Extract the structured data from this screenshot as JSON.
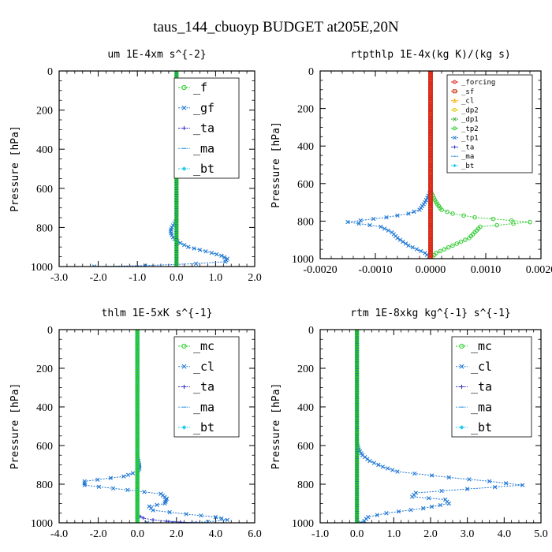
{
  "figure": {
    "title": "taus_144_cbuoyp  BUDGET at205E,20N"
  },
  "chart_data": [
    {
      "type": "line",
      "title": "um  1E-4xm s^{-2}",
      "ylabel": "Pressure [hPa]",
      "xlim": [
        -3.0,
        2.0
      ],
      "ylim": [
        1000,
        0
      ],
      "xticks": [
        "-3.0",
        "-2.0",
        "-1.0",
        "0.0",
        "1.0",
        "2.0"
      ],
      "xtick_values": [
        -3,
        -2,
        -1,
        0,
        1,
        2
      ],
      "yticks": [
        "0",
        "200",
        "400",
        "600",
        "800",
        "1000"
      ],
      "ytick_values": [
        0,
        200,
        400,
        600,
        800,
        1000
      ],
      "legend_style": "big",
      "legend_position": "top-right",
      "series": [
        {
          "name": "_f",
          "color": "#22cc22",
          "marker": "circle",
          "x": [
            0,
            0
          ],
          "y": [
            0,
            1000
          ]
        },
        {
          "name": "_gf",
          "color": "#1f77d4",
          "marker": "x",
          "x": [
            0,
            0,
            0,
            0,
            0,
            -0.05,
            -0.12,
            -0.15,
            -0.12,
            -0.05,
            0.1,
            0.3,
            0.6,
            0.9,
            1.15,
            1.3,
            1.25,
            0.5,
            -0.8,
            -2.1
          ],
          "y": [
            0,
            600,
            700,
            740,
            760,
            780,
            800,
            820,
            840,
            860,
            880,
            900,
            915,
            930,
            945,
            960,
            975,
            985,
            995,
            1000
          ]
        },
        {
          "name": "_ta",
          "color": "#3333cc",
          "marker": "plus",
          "x": [
            0,
            0
          ],
          "y": [
            0,
            1000
          ]
        },
        {
          "name": "_ma",
          "color": "#4499dd",
          "marker": "dash",
          "x": [
            0,
            0
          ],
          "y": [
            0,
            1000
          ]
        },
        {
          "name": "_bt",
          "color": "#22ccee",
          "marker": "diamond",
          "x": [
            0,
            0
          ],
          "y": [
            0,
            1000
          ]
        }
      ]
    },
    {
      "type": "line",
      "title": "rtpthlp  1E-4x(kg K)/(kg s)",
      "ylabel": "Pressure [hPa]",
      "xlim": [
        -0.002,
        0.002
      ],
      "ylim": [
        1000,
        0
      ],
      "xticks": [
        "-0.0020",
        "-0.0010",
        "0.0000",
        "0.0010",
        "0.0020"
      ],
      "xtick_values": [
        -0.002,
        -0.001,
        0,
        0.001,
        0.002
      ],
      "yticks": [
        "0",
        "200",
        "400",
        "600",
        "800",
        "1000"
      ],
      "ytick_values": [
        0,
        200,
        400,
        600,
        800,
        1000
      ],
      "legend_style": "small",
      "legend_position": "top-right",
      "series": [
        {
          "name": "_forcing",
          "color": "#dd2222",
          "marker": "circle",
          "x": [
            0,
            0
          ],
          "y": [
            0,
            1000
          ]
        },
        {
          "name": "_sf",
          "color": "#cc3311",
          "marker": "square",
          "x": [
            0,
            0
          ],
          "y": [
            0,
            1000
          ]
        },
        {
          "name": "_cl",
          "color": "#ffaa00",
          "marker": "triangle",
          "x": [
            0,
            0
          ],
          "y": [
            0,
            1000
          ]
        },
        {
          "name": "_dp2",
          "color": "#ddcc00",
          "marker": "circle",
          "x": [
            0,
            0
          ],
          "y": [
            0,
            1000
          ]
        },
        {
          "name": "_dp1",
          "color": "#33aa33",
          "marker": "x",
          "x": [
            0,
            0
          ],
          "y": [
            0,
            1000
          ]
        },
        {
          "name": "_tp2",
          "color": "#33cc33",
          "marker": "circle",
          "x": [
            0,
            0,
            0.0001,
            0.0002,
            0.0004,
            0.0008,
            0.0018,
            0.0009,
            0.0008,
            0.0007,
            0.0004,
            0.0001,
            0
          ],
          "y": [
            0,
            640,
            700,
            740,
            760,
            780,
            805,
            830,
            860,
            890,
            930,
            970,
            1000
          ]
        },
        {
          "name": "_tp1",
          "color": "#1f77d4",
          "marker": "x",
          "x": [
            0,
            0,
            -0.0001,
            -0.0002,
            -0.0004,
            -0.0008,
            -0.0015,
            -0.0009,
            -0.0007,
            -0.0006,
            -0.0004,
            -0.0001,
            0
          ],
          "y": [
            0,
            640,
            700,
            740,
            760,
            780,
            805,
            830,
            860,
            890,
            930,
            970,
            1000
          ]
        },
        {
          "name": "_ta",
          "color": "#3333cc",
          "marker": "plus",
          "x": [
            0,
            0
          ],
          "y": [
            0,
            1000
          ]
        },
        {
          "name": "_ma",
          "color": "#4499dd",
          "marker": "dash",
          "x": [
            0,
            0
          ],
          "y": [
            0,
            1000
          ]
        },
        {
          "name": "_bt",
          "color": "#22ccee",
          "marker": "diamond",
          "x": [
            0,
            0
          ],
          "y": [
            0,
            1000
          ]
        }
      ]
    },
    {
      "type": "line",
      "title": "thlm  1E-5xK s^{-1}",
      "ylabel": "Pressure [hPa]",
      "xlim": [
        -4.0,
        6.0
      ],
      "ylim": [
        1000,
        0
      ],
      "xticks": [
        "-4.0",
        "-2.0",
        "0.0",
        "2.0",
        "4.0",
        "6.0"
      ],
      "xtick_values": [
        -4,
        -2,
        0,
        2,
        4,
        6
      ],
      "yticks": [
        "0",
        "200",
        "400",
        "600",
        "800",
        "1000"
      ],
      "ytick_values": [
        0,
        200,
        400,
        600,
        800,
        1000
      ],
      "legend_style": "big",
      "legend_position": "top-right",
      "series": [
        {
          "name": "_mc",
          "color": "#22cc22",
          "marker": "circle",
          "x": [
            0,
            0
          ],
          "y": [
            0,
            1000
          ]
        },
        {
          "name": "_cl",
          "color": "#1f77d4",
          "marker": "x",
          "x": [
            0,
            0,
            0.1,
            0.1,
            0,
            -0.7,
            -2.7,
            -2.7,
            -0.5,
            1.2,
            1.5,
            1.4,
            0.6,
            0.8,
            2.5,
            4.0,
            4.6,
            3.6,
            1.8,
            0.5
          ],
          "y": [
            0,
            660,
            700,
            720,
            735,
            760,
            785,
            805,
            830,
            850,
            875,
            900,
            915,
            935,
            955,
            970,
            985,
            995,
            1000,
            1000
          ]
        },
        {
          "name": "_ta",
          "color": "#3333cc",
          "marker": "plus",
          "x": [
            0,
            0,
            0.3,
            0.8,
            1.5,
            2.2,
            3.0
          ],
          "y": [
            0,
            960,
            975,
            985,
            992,
            996,
            1000
          ]
        },
        {
          "name": "_ma",
          "color": "#4499dd",
          "marker": "dash",
          "x": [
            0,
            0
          ],
          "y": [
            0,
            1000
          ]
        },
        {
          "name": "_bt",
          "color": "#22ccee",
          "marker": "diamond",
          "x": [
            0,
            0
          ],
          "y": [
            0,
            1000
          ]
        }
      ]
    },
    {
      "type": "line",
      "title": "rtm  1E-8xkg kg^{-1} s^{-1}",
      "ylabel": "Pressure [hPa]",
      "xlim": [
        -1.0,
        5.0
      ],
      "ylim": [
        1000,
        0
      ],
      "xticks": [
        "-1.0",
        "0.0",
        "1.0",
        "2.0",
        "3.0",
        "4.0",
        "5.0"
      ],
      "xtick_values": [
        -1,
        0,
        1,
        2,
        3,
        4,
        5
      ],
      "yticks": [
        "0",
        "200",
        "400",
        "600",
        "800",
        "1000"
      ],
      "ytick_values": [
        0,
        200,
        400,
        600,
        800,
        1000
      ],
      "legend_style": "big",
      "legend_position": "top-right",
      "series": [
        {
          "name": "_mc",
          "color": "#22cc22",
          "marker": "circle",
          "x": [
            0,
            0
          ],
          "y": [
            0,
            1000
          ]
        },
        {
          "name": "_cl",
          "color": "#1f77d4",
          "marker": "x",
          "x": [
            0,
            0,
            0.05,
            0.15,
            0.35,
            0.7,
            1.1,
            2.5,
            3.6,
            4.5,
            3.0,
            1.6,
            1.5,
            2.4,
            2.5,
            1.8,
            0.8,
            0.3,
            0.2,
            0.1
          ],
          "y": [
            0,
            590,
            620,
            650,
            680,
            710,
            735,
            765,
            785,
            805,
            825,
            845,
            865,
            880,
            900,
            925,
            950,
            970,
            990,
            1000
          ]
        },
        {
          "name": "_ta",
          "color": "#3333cc",
          "marker": "plus",
          "x": [
            0,
            0
          ],
          "y": [
            0,
            1000
          ]
        },
        {
          "name": "_ma",
          "color": "#4499dd",
          "marker": "dash",
          "x": [
            0,
            0
          ],
          "y": [
            0,
            1000
          ]
        },
        {
          "name": "_bt",
          "color": "#22ccee",
          "marker": "diamond",
          "x": [
            0,
            0
          ],
          "y": [
            0,
            1000
          ]
        }
      ]
    }
  ]
}
